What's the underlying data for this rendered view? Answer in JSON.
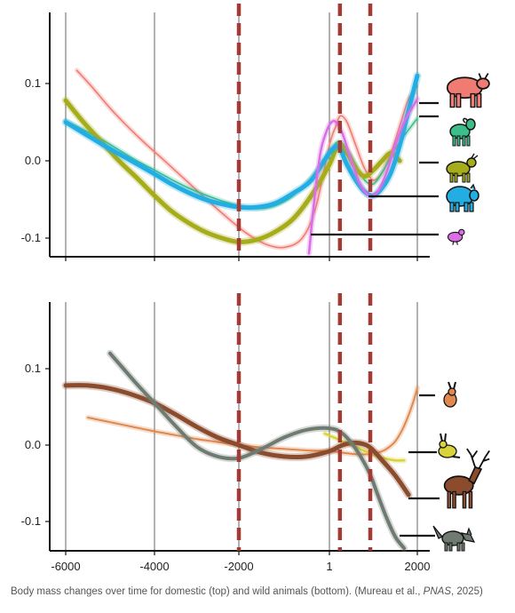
{
  "caption": {
    "part1": "Body mass changes over time for domestic (top) and wild animals (bottom). (Mureau et al., ",
    "journal": "PNAS",
    "part2": ", 2025)"
  },
  "chart_data": [
    {
      "type": "line",
      "panel": "top",
      "title": "",
      "xlabel": "",
      "ylabel": "",
      "xlim": [
        -6200,
        2150
      ],
      "ylim": [
        -0.125,
        0.2
      ],
      "x_ticks": [
        -6000,
        -4000,
        -2000,
        1,
        2000
      ],
      "y_ticks": [
        0.1,
        0.0,
        -0.1
      ],
      "y_tick_labels": [
        "0.1",
        "0.0",
        "-0.1"
      ],
      "vertical_lines": [
        -6000,
        -4000,
        -2000,
        1,
        2000
      ],
      "dashed_lines": [
        -2000,
        240,
        930
      ],
      "legend": "icons-right",
      "series": [
        {
          "icon": "cattle",
          "color": "#f07b73",
          "width": 1.6,
          "x": [
            -5750,
            -5400,
            -5000,
            -4600,
            -4200,
            -3800,
            -3400,
            -3000,
            -2600,
            -2200,
            -1800,
            -1400,
            -1000,
            -600,
            -300,
            0,
            150,
            250,
            400,
            600,
            800,
            1000,
            1200,
            1400,
            1600,
            1800,
            1950
          ],
          "y": [
            0.117,
            0.095,
            0.068,
            0.044,
            0.022,
            0.002,
            -0.018,
            -0.038,
            -0.058,
            -0.077,
            -0.095,
            -0.108,
            -0.112,
            -0.1,
            -0.06,
            0.02,
            0.045,
            0.058,
            0.05,
            0.02,
            -0.01,
            -0.025,
            -0.015,
            0.01,
            0.045,
            0.08,
            0.09
          ]
        },
        {
          "icon": "goat",
          "color": "#3dbd8a",
          "width": 1.6,
          "x": [
            -6000,
            -5600,
            -5200,
            -4800,
            -4400,
            -4000,
            -3600,
            -3200,
            -2800,
            -2400,
            -2000,
            -1600,
            -1200,
            -800,
            -400,
            0,
            200,
            400,
            600,
            800,
            1000,
            1200,
            1400,
            1600,
            1800,
            2000
          ],
          "y": [
            0.052,
            0.04,
            0.028,
            0.014,
            0.0,
            -0.012,
            -0.024,
            -0.035,
            -0.044,
            -0.052,
            -0.058,
            -0.062,
            -0.058,
            -0.045,
            -0.022,
            0.01,
            0.025,
            0.015,
            -0.005,
            -0.025,
            -0.03,
            -0.015,
            0.005,
            0.025,
            0.04,
            0.055
          ]
        },
        {
          "icon": "sheep",
          "color": "#a6ac1a",
          "width": 5,
          "x": [
            -6000,
            -5600,
            -5200,
            -4800,
            -4400,
            -4000,
            -3600,
            -3200,
            -2800,
            -2400,
            -2000,
            -1600,
            -1200,
            -800,
            -400,
            0,
            200,
            400,
            600,
            800,
            1000,
            1200,
            1400,
            1600
          ],
          "y": [
            0.078,
            0.05,
            0.025,
            0.0,
            -0.022,
            -0.045,
            -0.065,
            -0.08,
            -0.092,
            -0.1,
            -0.105,
            -0.102,
            -0.092,
            -0.075,
            -0.045,
            -0.005,
            0.02,
            0.01,
            -0.01,
            -0.02,
            -0.012,
            0.0,
            0.01,
            0.0
          ]
        },
        {
          "icon": "pig",
          "color": "#22aee3",
          "width": 5,
          "x": [
            -6000,
            -5600,
            -5200,
            -4800,
            -4400,
            -4000,
            -3600,
            -3200,
            -2800,
            -2400,
            -2000,
            -1600,
            -1200,
            -800,
            -400,
            0,
            200,
            400,
            600,
            800,
            1000,
            1200,
            1400,
            1600,
            1800,
            2000
          ],
          "y": [
            0.05,
            0.036,
            0.022,
            0.009,
            -0.004,
            -0.017,
            -0.03,
            -0.041,
            -0.05,
            -0.056,
            -0.06,
            -0.06,
            -0.055,
            -0.042,
            -0.025,
            0.01,
            0.018,
            -0.005,
            -0.025,
            -0.04,
            -0.045,
            -0.035,
            -0.015,
            0.02,
            0.065,
            0.11
          ]
        },
        {
          "icon": "chicken",
          "color": "#d96ee6",
          "width": 2.5,
          "x": [
            -450,
            -350,
            -200,
            -50,
            50,
            150,
            300,
            500,
            700,
            900,
            1100,
            1300,
            1500,
            1700,
            1900,
            2000
          ],
          "y": [
            -0.12,
            -0.06,
            0.01,
            0.04,
            0.05,
            0.05,
            0.035,
            0.0,
            -0.03,
            -0.045,
            -0.04,
            -0.015,
            0.02,
            0.05,
            0.07,
            0.08
          ]
        }
      ]
    },
    {
      "type": "line",
      "panel": "bottom",
      "title": "",
      "xlabel": "",
      "ylabel": "",
      "xlim": [
        -6200,
        2150
      ],
      "ylim": [
        -0.145,
        0.19
      ],
      "x_ticks": [
        -6000,
        -4000,
        -2000,
        1,
        2000
      ],
      "x_tick_labels": [
        "-6000",
        "-4000",
        "-2000",
        "1",
        "2000"
      ],
      "y_ticks": [
        0.1,
        0.0,
        -0.1
      ],
      "y_tick_labels": [
        "0.1",
        "0.0",
        "-0.1"
      ],
      "vertical_lines": [
        -6000,
        -4000,
        -2000,
        1,
        2000
      ],
      "dashed_lines": [
        -2000,
        240,
        930
      ],
      "legend": "icons-right",
      "series": [
        {
          "icon": "hare",
          "color": "#e0894e",
          "width": 2,
          "x": [
            -5500,
            -5000,
            -4500,
            -4000,
            -3500,
            -3000,
            -2500,
            -2000,
            -1500,
            -1000,
            -500,
            0,
            300,
            600,
            900,
            1100,
            1300,
            1500,
            1700,
            1900,
            2000
          ],
          "y": [
            0.036,
            0.03,
            0.024,
            0.018,
            0.013,
            0.008,
            0.004,
            0.0,
            -0.003,
            -0.005,
            -0.007,
            -0.008,
            -0.01,
            -0.012,
            -0.012,
            -0.01,
            -0.005,
            0.005,
            0.025,
            0.055,
            0.075
          ]
        },
        {
          "icon": "rabbit",
          "color": "#d8d33a",
          "width": 2.5,
          "x": [
            -100,
            100,
            300,
            500,
            700,
            900,
            1100,
            1300,
            1500,
            1700
          ],
          "y": [
            0.015,
            0.01,
            0.005,
            0.0,
            -0.005,
            -0.01,
            -0.015,
            -0.018,
            -0.02,
            -0.02
          ]
        },
        {
          "icon": "deer",
          "color": "#8b4c2e",
          "width": 5,
          "x": [
            -6000,
            -5500,
            -5000,
            -4500,
            -4000,
            -3500,
            -3000,
            -2500,
            -2000,
            -1500,
            -1000,
            -500,
            0,
            300,
            600,
            900,
            1200,
            1500,
            1800
          ],
          "y": [
            0.078,
            0.078,
            0.074,
            0.066,
            0.055,
            0.04,
            0.024,
            0.01,
            0.0,
            -0.01,
            -0.015,
            -0.015,
            -0.008,
            0.0,
            0.003,
            -0.002,
            -0.02,
            -0.04,
            -0.065
          ]
        },
        {
          "icon": "fox",
          "color": "#6f7a70",
          "width": 4,
          "x": [
            -5000,
            -4700,
            -4400,
            -4000,
            -3500,
            -3000,
            -2500,
            -2000,
            -1500,
            -1000,
            -500,
            0,
            300,
            600,
            900,
            1100,
            1300,
            1500,
            1700
          ],
          "y": [
            0.12,
            0.1,
            0.08,
            0.055,
            0.025,
            -0.002,
            -0.015,
            -0.017,
            -0.005,
            0.01,
            0.02,
            0.022,
            0.015,
            -0.005,
            -0.035,
            -0.065,
            -0.095,
            -0.12,
            -0.135
          ]
        }
      ]
    }
  ]
}
